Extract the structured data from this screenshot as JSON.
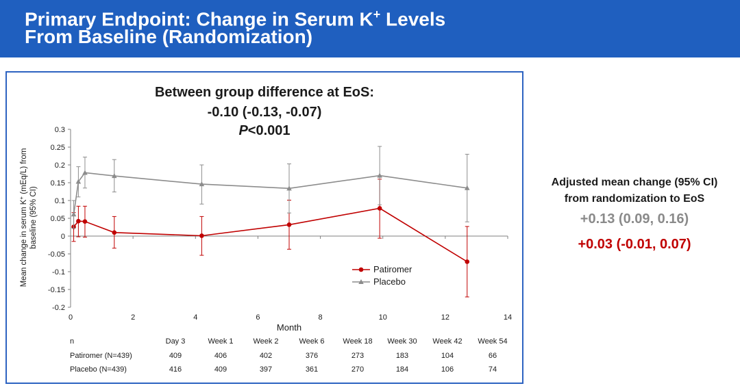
{
  "header": {
    "title_line1": "Primary Endpoint: Change in Serum K",
    "title_sup": "+",
    "title_line1_end": " Levels",
    "title_line2": "From Baseline (Randomization)"
  },
  "annotation": {
    "line1": "Between group difference at EoS:",
    "line2": "-0.10 (-0.13, -0.07)",
    "p_italic": "P",
    "p_rest": "<0.001"
  },
  "side_panel": {
    "heading_line1": "Adjusted mean change (95% CI)",
    "heading_line2": "from randomization to EoS",
    "placebo_value": "+0.13 (0.09, 0.16)",
    "patiromer_value": "+0.03 (-0.01, 0.07)",
    "placebo_color": "#8a8a8a",
    "patiromer_color": "#c00000"
  },
  "chart_data": {
    "type": "line",
    "xlabel": "Month",
    "ylabel": "Mean change in serum K+ (mEq/L) from baseline (95% CI)",
    "ylabel_line1": "Mean change in serum K",
    "ylabel_sup": "+",
    "ylabel_line1_end": " (mEq/L) from",
    "ylabel_line2": "baseline (95% CI)",
    "xlim": [
      0,
      14
    ],
    "ylim": [
      -0.2,
      0.3
    ],
    "xticks": [
      0,
      2,
      4,
      6,
      8,
      10,
      12,
      14
    ],
    "yticks": [
      -0.2,
      -0.15,
      -0.1,
      -0.05,
      0,
      0.05,
      0.1,
      0.15,
      0.2,
      0.25,
      0.3
    ],
    "ytick_labels": [
      "-0.2",
      "-0.15",
      "-0.1",
      "-0.05",
      "0",
      "0.05",
      "0.1",
      "0.15",
      "0.2",
      "0.25",
      "0.3"
    ],
    "legend_position": "center-right",
    "series": [
      {
        "name": "Patiromer",
        "color": "#c00000",
        "marker": "circle",
        "points": [
          {
            "x": 0.1,
            "y": 0.026,
            "lo": -0.015,
            "hi": 0.066
          },
          {
            "x": 0.25,
            "y": 0.042,
            "lo": -0.002,
            "hi": 0.084
          },
          {
            "x": 0.46,
            "y": 0.041,
            "lo": -0.003,
            "hi": 0.084
          },
          {
            "x": 1.4,
            "y": 0.01,
            "lo": -0.034,
            "hi": 0.055
          },
          {
            "x": 4.2,
            "y": 0.001,
            "lo": -0.054,
            "hi": 0.055
          },
          {
            "x": 7.0,
            "y": 0.032,
            "lo": -0.037,
            "hi": 0.101
          },
          {
            "x": 9.9,
            "y": 0.078,
            "lo": -0.006,
            "hi": 0.16
          },
          {
            "x": 12.7,
            "y": -0.072,
            "lo": -0.171,
            "hi": 0.027
          }
        ]
      },
      {
        "name": "Placebo",
        "color": "#8c8c8c",
        "marker": "triangle",
        "points": [
          {
            "x": 0.1,
            "y": 0.061,
            "lo": 0.022,
            "hi": 0.1
          },
          {
            "x": 0.25,
            "y": 0.153,
            "lo": 0.11,
            "hi": 0.195
          },
          {
            "x": 0.46,
            "y": 0.178,
            "lo": 0.135,
            "hi": 0.222
          },
          {
            "x": 1.4,
            "y": 0.169,
            "lo": 0.124,
            "hi": 0.215
          },
          {
            "x": 4.2,
            "y": 0.146,
            "lo": 0.09,
            "hi": 0.2
          },
          {
            "x": 7.0,
            "y": 0.134,
            "lo": 0.065,
            "hi": 0.203
          },
          {
            "x": 9.9,
            "y": 0.17,
            "lo": 0.088,
            "hi": 0.252
          },
          {
            "x": 12.7,
            "y": 0.135,
            "lo": 0.04,
            "hi": 0.23
          }
        ]
      }
    ]
  },
  "table": {
    "n_label": "n",
    "columns": [
      "Day 3",
      "Week 1",
      "Week 2",
      "Week 6",
      "Week 18",
      "Week 30",
      "Week 42",
      "Week 54"
    ],
    "rows": [
      {
        "label": "Patiromer (N=439)",
        "values": [
          "409",
          "406",
          "402",
          "376",
          "273",
          "183",
          "104",
          "66"
        ]
      },
      {
        "label": "Placebo (N=439)",
        "values": [
          "416",
          "409",
          "397",
          "361",
          "270",
          "184",
          "106",
          "74"
        ]
      }
    ]
  }
}
